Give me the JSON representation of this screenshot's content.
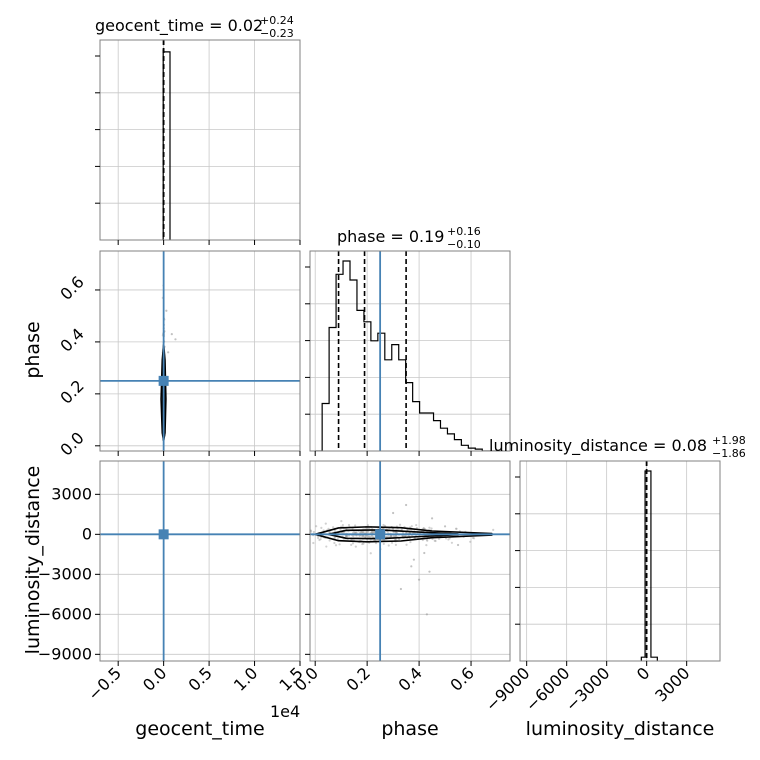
{
  "chart_data": {
    "type": "corner",
    "colors": {
      "truth": "#4682b4",
      "hist": "#000000",
      "contour": "#000000",
      "samples": "#9a9a9a"
    },
    "parameters": [
      {
        "name": "geocent_time",
        "title": "geocent_time = 0.02",
        "plus": "+0.24",
        "minus": "−0.23",
        "range": [
          -7000,
          15000
        ],
        "ticks": [
          -5000,
          0,
          5000,
          10000,
          15000
        ],
        "ticklabels": [
          "−0.5",
          "0.0",
          "0.5",
          "1.0",
          "1.5"
        ],
        "offset": "1e4",
        "truth": 0,
        "quantiles": [
          -0.21,
          0.02,
          0.26
        ]
      },
      {
        "name": "phase",
        "title": "phase = 0.19",
        "plus": "+0.16",
        "minus": "−0.10",
        "range": [
          -0.02,
          0.75
        ],
        "ticks": [
          0.0,
          0.2,
          0.4,
          0.6
        ],
        "ticklabels": [
          "0.0",
          "0.2",
          "0.4",
          "0.6"
        ],
        "truth": 0.25,
        "quantiles": [
          0.09,
          0.19,
          0.35
        ]
      },
      {
        "name": "luminosity_distance",
        "title": "luminosity_distance = 0.08",
        "plus": "+1.98",
        "minus": "−1.86",
        "range": [
          -9500,
          5500
        ],
        "ticks": [
          -9000,
          -6000,
          -3000,
          0,
          3000
        ],
        "ticklabels": [
          "−9000",
          "−6000",
          "−3000",
          "0",
          "3000"
        ],
        "truth": 0,
        "quantiles": [
          -1.78,
          0.08,
          2.06
        ]
      }
    ],
    "histograms": {
      "geocent_time": {
        "edges": [
          -50,
          0,
          700
        ],
        "counts": [
          1.0,
          0.99
        ]
      },
      "phase": {
        "edges": [
          0.0,
          0.0268,
          0.0536,
          0.0804,
          0.1072,
          0.134,
          0.1608,
          0.1876,
          0.2144,
          0.2412,
          0.268,
          0.2948,
          0.3216,
          0.3484,
          0.3752,
          0.402,
          0.4288,
          0.4556,
          0.4824,
          0.5092,
          0.536,
          0.5628,
          0.5896,
          0.6164,
          0.6432,
          0.67,
          0.6968,
          0.7236
        ],
        "counts": [
          0.0,
          0.25,
          0.65,
          0.93,
          1.0,
          0.9,
          0.74,
          0.68,
          0.58,
          0.62,
          0.48,
          0.56,
          0.48,
          0.36,
          0.26,
          0.2,
          0.2,
          0.16,
          0.12,
          0.09,
          0.06,
          0.03,
          0.015,
          0.01,
          0.0,
          0.0,
          0.0
        ]
      },
      "luminosity_distance": {
        "edges": [
          -400,
          -120,
          0,
          320,
          800
        ],
        "counts": [
          0.02,
          1.0,
          1.0,
          0.02
        ]
      }
    },
    "scatter": [
      {
        "x": "geocent_time",
        "y": "phase",
        "center": [
          0,
          0.22
        ],
        "spread": [
          45,
          0.12
        ],
        "n": 180,
        "strays": [
          [
            900,
            0.43
          ],
          [
            1300,
            0.41
          ],
          [
            300,
            0.52
          ],
          [
            500,
            0.36
          ]
        ],
        "contours": [
          [
            [
              -150,
              0.05
            ],
            [
              -280,
              0.18
            ],
            [
              -150,
              0.33
            ],
            [
              0,
              0.39
            ],
            [
              150,
              0.33
            ],
            [
              250,
              0.18
            ],
            [
              150,
              0.05
            ],
            [
              0,
              0.02
            ]
          ],
          [
            [
              -60,
              0.08
            ],
            [
              -120,
              0.18
            ],
            [
              -60,
              0.3
            ],
            [
              0,
              0.33
            ],
            [
              60,
              0.3
            ],
            [
              110,
              0.18
            ],
            [
              60,
              0.08
            ],
            [
              0,
              0.06
            ]
          ]
        ]
      },
      {
        "x": "geocent_time",
        "y": "luminosity_distance",
        "center": [
          0,
          0
        ],
        "spread": [
          60,
          60
        ],
        "n": 60,
        "strays": [],
        "contours": [
          [
            [
              -250,
              -150
            ],
            [
              250,
              -150
            ],
            [
              250,
              150
            ],
            [
              -250,
              150
            ]
          ]
        ]
      },
      {
        "x": "phase",
        "y": "luminosity_distance",
        "center": [
          0.25,
          0
        ],
        "spread": [
          0.16,
          350
        ],
        "n": 420,
        "strays": [
          [
            0.35,
            2200
          ],
          [
            0.3,
            1600
          ],
          [
            0.42,
            -1400
          ],
          [
            0.38,
            -1900
          ],
          [
            0.44,
            -2800
          ],
          [
            0.4,
            -3400
          ],
          [
            0.37,
            -2400
          ],
          [
            0.45,
            1200
          ],
          [
            0.43,
            -6000
          ],
          [
            0.5,
            600
          ],
          [
            0.55,
            -800
          ],
          [
            0.33,
            -4100
          ]
        ],
        "contours": [
          [
            [
              0.0,
              0
            ],
            [
              0.09,
              480
            ],
            [
              0.2,
              560
            ],
            [
              0.33,
              500
            ],
            [
              0.45,
              250
            ],
            [
              0.68,
              60
            ],
            [
              0.68,
              -60
            ],
            [
              0.45,
              -250
            ],
            [
              0.33,
              -500
            ],
            [
              0.2,
              -560
            ],
            [
              0.09,
              -480
            ]
          ],
          [
            [
              0.05,
              0
            ],
            [
              0.12,
              300
            ],
            [
              0.25,
              330
            ],
            [
              0.38,
              190
            ],
            [
              0.55,
              30
            ],
            [
              0.55,
              -30
            ],
            [
              0.38,
              -190
            ],
            [
              0.25,
              -330
            ],
            [
              0.12,
              -300
            ]
          ]
        ]
      }
    ]
  }
}
